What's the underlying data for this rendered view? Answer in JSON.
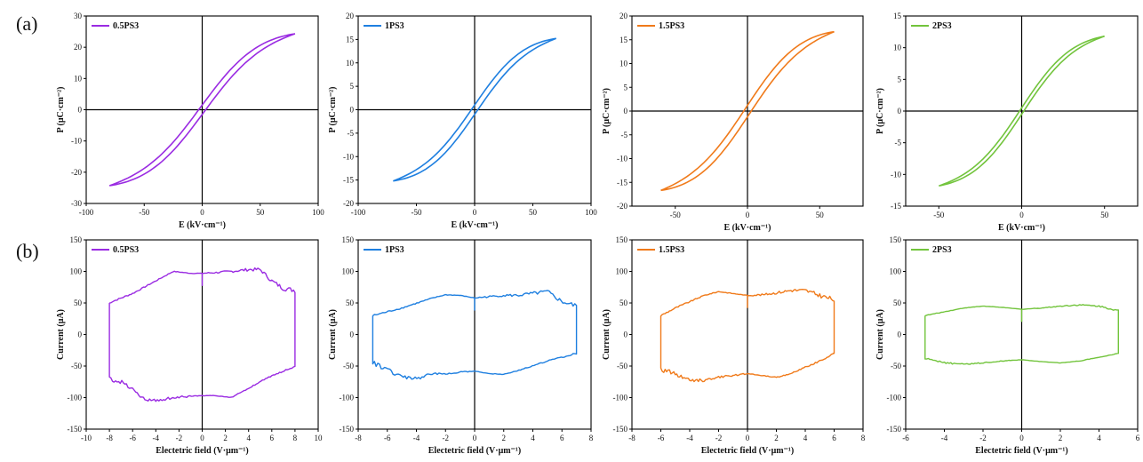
{
  "figure": {
    "panel_a_label": "(a)",
    "panel_b_label": "(b)"
  },
  "chart_data": [
    {
      "type": "line",
      "row": "a",
      "legend": "0.5PS3",
      "color": "#9A2BE2",
      "xlabel": "E (kV·cm⁻¹)",
      "ylabel": "P (μC·cm⁻²)",
      "xlim": [
        -100,
        100
      ],
      "ylim": [
        -30,
        30
      ],
      "xticks": [
        -100,
        -50,
        0,
        50,
        100
      ],
      "yticks": [
        -30,
        -20,
        -10,
        0,
        10,
        20,
        30
      ],
      "loop": {
        "Emax": 80,
        "Pmax": 24.3,
        "Pr": 1.5,
        "Ec": 5
      }
    },
    {
      "type": "line",
      "row": "a",
      "legend": "1PS3",
      "color": "#1E7FE0",
      "xlabel": "E (kV·cm⁻¹)",
      "ylabel": "P (μC·cm⁻²)",
      "xlim": [
        -100,
        100
      ],
      "ylim": [
        -20,
        20
      ],
      "xticks": [
        -100,
        -50,
        0,
        50,
        100
      ],
      "yticks": [
        -20,
        -15,
        -10,
        -5,
        0,
        5,
        10,
        15,
        20
      ],
      "loop": {
        "Emax": 70,
        "Pmax": 15.2,
        "Pr": 1.0,
        "Ec": 4
      }
    },
    {
      "type": "line",
      "row": "a",
      "legend": "1.5PS3",
      "color": "#F07A1A",
      "xlabel": "E (kV·cm⁻¹)",
      "ylabel": "P (μC·cm⁻²)",
      "xlim": [
        -80,
        80
      ],
      "ylim": [
        -20,
        20
      ],
      "xticks": [
        -50,
        0,
        50
      ],
      "yticks": [
        -20,
        -15,
        -10,
        -5,
        0,
        5,
        10,
        15,
        20
      ],
      "loop": {
        "Emax": 60,
        "Pmax": 16.7,
        "Pr": 1.2,
        "Ec": 4
      }
    },
    {
      "type": "line",
      "row": "a",
      "legend": "2PS3",
      "color": "#72C43C",
      "xlabel": "E (kV·cm⁻¹)",
      "ylabel": "P (μC·cm⁻²)",
      "xlim": [
        -70,
        70
      ],
      "ylim": [
        -15,
        15
      ],
      "xticks": [
        -50,
        0,
        50
      ],
      "yticks": [
        -15,
        -10,
        -5,
        0,
        5,
        10,
        15
      ],
      "loop": {
        "Emax": 50,
        "Pmax": 11.8,
        "Pr": 0.5,
        "Ec": 2
      }
    },
    {
      "type": "line",
      "row": "b",
      "legend": "0.5PS3",
      "color": "#9A2BE2",
      "xlabel": "Electetric field (V·μm⁻¹)",
      "ylabel": "Current (μA)",
      "xlim": [
        -10,
        10
      ],
      "ylim": [
        -150,
        150
      ],
      "xticks": [
        -10,
        -8,
        -6,
        -4,
        -2,
        0,
        2,
        4,
        6,
        8,
        10
      ],
      "yticks": [
        -150,
        -100,
        -50,
        0,
        50,
        100,
        150
      ],
      "upper": {
        "x": [
          -8.0,
          -7.8,
          -6.0,
          -4.0,
          -2.5,
          -1.0,
          0.0,
          1.0,
          2.5,
          4.0,
          5.0,
          6.0,
          7.0,
          8.0
        ],
        "y": [
          50,
          52,
          65,
          85,
          100,
          97,
          97,
          98,
          100,
          103,
          103,
          85,
          73,
          70
        ]
      },
      "lower": {
        "x": [
          8.0,
          7.8,
          6.0,
          4.0,
          2.5,
          1.0,
          0.0,
          -1.0,
          -2.5,
          -4.0,
          -5.0,
          -6.0,
          -7.0,
          -8.0
        ],
        "y": [
          -50,
          -52,
          -65,
          -85,
          -100,
          -97,
          -97,
          -98,
          -100,
          -105,
          -103,
          -85,
          -75,
          -70
        ]
      }
    },
    {
      "type": "line",
      "row": "b",
      "legend": "1PS3",
      "color": "#1E7FE0",
      "xlabel": "Electetric field (V·μm⁻¹)",
      "ylabel": "Current (μA)",
      "xlim": [
        -8,
        8
      ],
      "ylim": [
        -150,
        150
      ],
      "xticks": [
        -8,
        -6,
        -4,
        -2,
        0,
        2,
        4,
        6,
        8
      ],
      "yticks": [
        -150,
        -100,
        -50,
        0,
        50,
        100,
        150
      ],
      "upper": {
        "x": [
          -7.0,
          -5.0,
          -3.0,
          -2.0,
          -1.0,
          0.0,
          1.0,
          2.0,
          3.0,
          4.0,
          5.0,
          6.0,
          7.0
        ],
        "y": [
          30,
          42,
          57,
          63,
          62,
          58,
          60,
          62,
          62,
          65,
          68,
          52,
          45
        ]
      },
      "lower": {
        "x": [
          7.0,
          5.0,
          3.0,
          2.0,
          1.0,
          0.0,
          -1.0,
          -2.0,
          -3.0,
          -4.0,
          -5.0,
          -6.0,
          -7.0
        ],
        "y": [
          -30,
          -42,
          -57,
          -63,
          -62,
          -58,
          -60,
          -62,
          -63,
          -70,
          -68,
          -55,
          -45
        ]
      }
    },
    {
      "type": "line",
      "row": "b",
      "legend": "1.5PS3",
      "color": "#F07A1A",
      "xlabel": "Electetric field (V·μm⁻¹)",
      "ylabel": "Current (μA)",
      "xlim": [
        -8,
        8
      ],
      "ylim": [
        -150,
        150
      ],
      "xticks": [
        -8,
        -6,
        -4,
        -2,
        0,
        2,
        4,
        6,
        8
      ],
      "yticks": [
        -150,
        -100,
        -50,
        0,
        50,
        100,
        150
      ],
      "upper": {
        "x": [
          -6.0,
          -5.0,
          -4.0,
          -3.0,
          -2.0,
          -1.0,
          0.0,
          1.0,
          2.0,
          3.0,
          4.0,
          5.0,
          6.0
        ],
        "y": [
          30,
          42,
          52,
          62,
          68,
          65,
          62,
          63,
          66,
          70,
          70,
          62,
          55
        ]
      },
      "lower": {
        "x": [
          6.0,
          5.0,
          4.0,
          3.0,
          2.0,
          1.0,
          0.0,
          -1.0,
          -2.0,
          -3.0,
          -4.0,
          -5.0,
          -6.0
        ],
        "y": [
          -30,
          -42,
          -52,
          -62,
          -68,
          -65,
          -62,
          -65,
          -68,
          -73,
          -72,
          -62,
          -55
        ]
      }
    },
    {
      "type": "line",
      "row": "b",
      "legend": "2PS3",
      "color": "#72C43C",
      "xlabel": "Electetric field (V·μm⁻¹)",
      "ylabel": "Current (μA)",
      "xlim": [
        -6,
        6
      ],
      "ylim": [
        -150,
        150
      ],
      "xticks": [
        -6,
        -4,
        -2,
        0,
        2,
        4,
        6
      ],
      "yticks": [
        -150,
        -100,
        -50,
        0,
        50,
        100,
        150
      ],
      "upper": {
        "x": [
          -5.0,
          -4.0,
          -3.0,
          -2.0,
          -1.0,
          0.0,
          1.0,
          2.0,
          3.0,
          4.0,
          5.0
        ],
        "y": [
          30,
          36,
          42,
          45,
          43,
          40,
          42,
          45,
          47,
          45,
          38
        ]
      },
      "lower": {
        "x": [
          5.0,
          4.0,
          3.0,
          2.0,
          1.0,
          0.0,
          -1.0,
          -2.0,
          -3.0,
          -4.0,
          -5.0
        ],
        "y": [
          -30,
          -36,
          -42,
          -45,
          -43,
          -40,
          -42,
          -45,
          -47,
          -45,
          -38
        ]
      }
    }
  ]
}
